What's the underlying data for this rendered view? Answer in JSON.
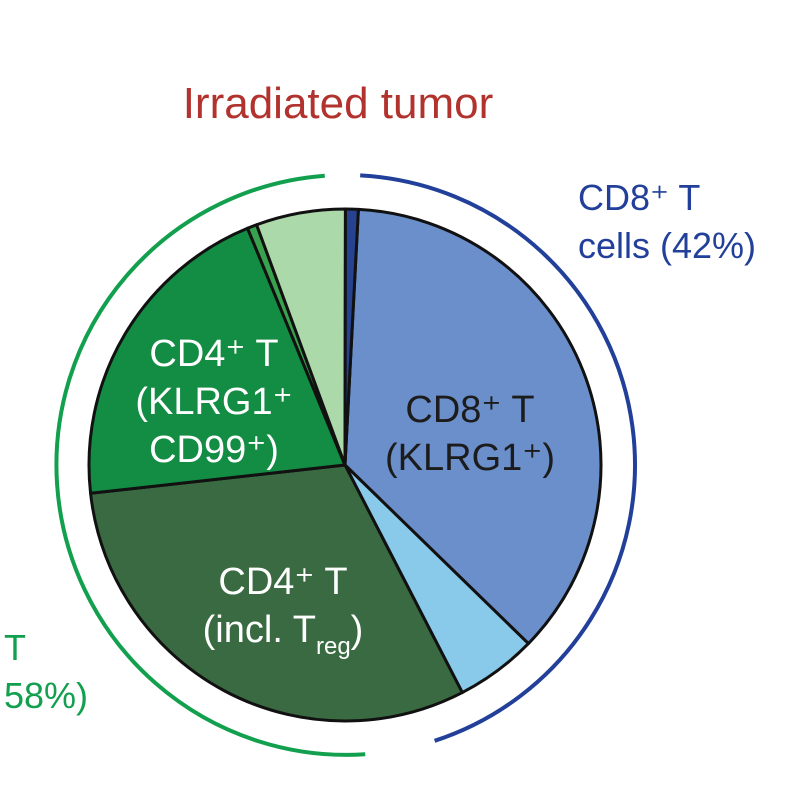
{
  "chart_data": {
    "type": "pie",
    "title": "Irradiated tumor",
    "slices": [
      {
        "label_lines": [
          "CD8⁺ T",
          "(KLRG1⁺)"
        ],
        "value": 36.2,
        "color": "#6b8fcb",
        "text_color": "#1c1c1c"
      },
      {
        "label_lines": [],
        "value": 5.1,
        "color": "#89c9ea",
        "text_color": "#1c1c1c"
      },
      {
        "label_lines": [
          "CD4⁺ T",
          "(incl. T"
        ],
        "label_subscript": "reg",
        "label_suffix": ")",
        "value": 30.6,
        "color": "#3a6a41",
        "text_color": "#ffffff"
      },
      {
        "label_lines": [
          "CD4⁺ T",
          "(KLRG1⁺",
          "CD99⁺)"
        ],
        "value": 20.4,
        "color": "#138c44",
        "text_color": "#ffffff"
      },
      {
        "label_lines": [],
        "value": 0.6,
        "color": "#39a24e",
        "text_color": "#ffffff"
      },
      {
        "label_lines": [],
        "value": 5.6,
        "color": "#acd9a9",
        "text_color": "#1c1c1c"
      },
      {
        "label_lines": [],
        "value": 0.8,
        "color": "#27438f",
        "text_color": "#ffffff"
      }
    ],
    "groups": [
      {
        "label_lines": [
          "CD8⁺ T",
          "cells (42%)"
        ],
        "color": "#22409a"
      },
      {
        "label_lines": [
          "T",
          "58%)"
        ],
        "color": "#12a04f"
      }
    ]
  }
}
